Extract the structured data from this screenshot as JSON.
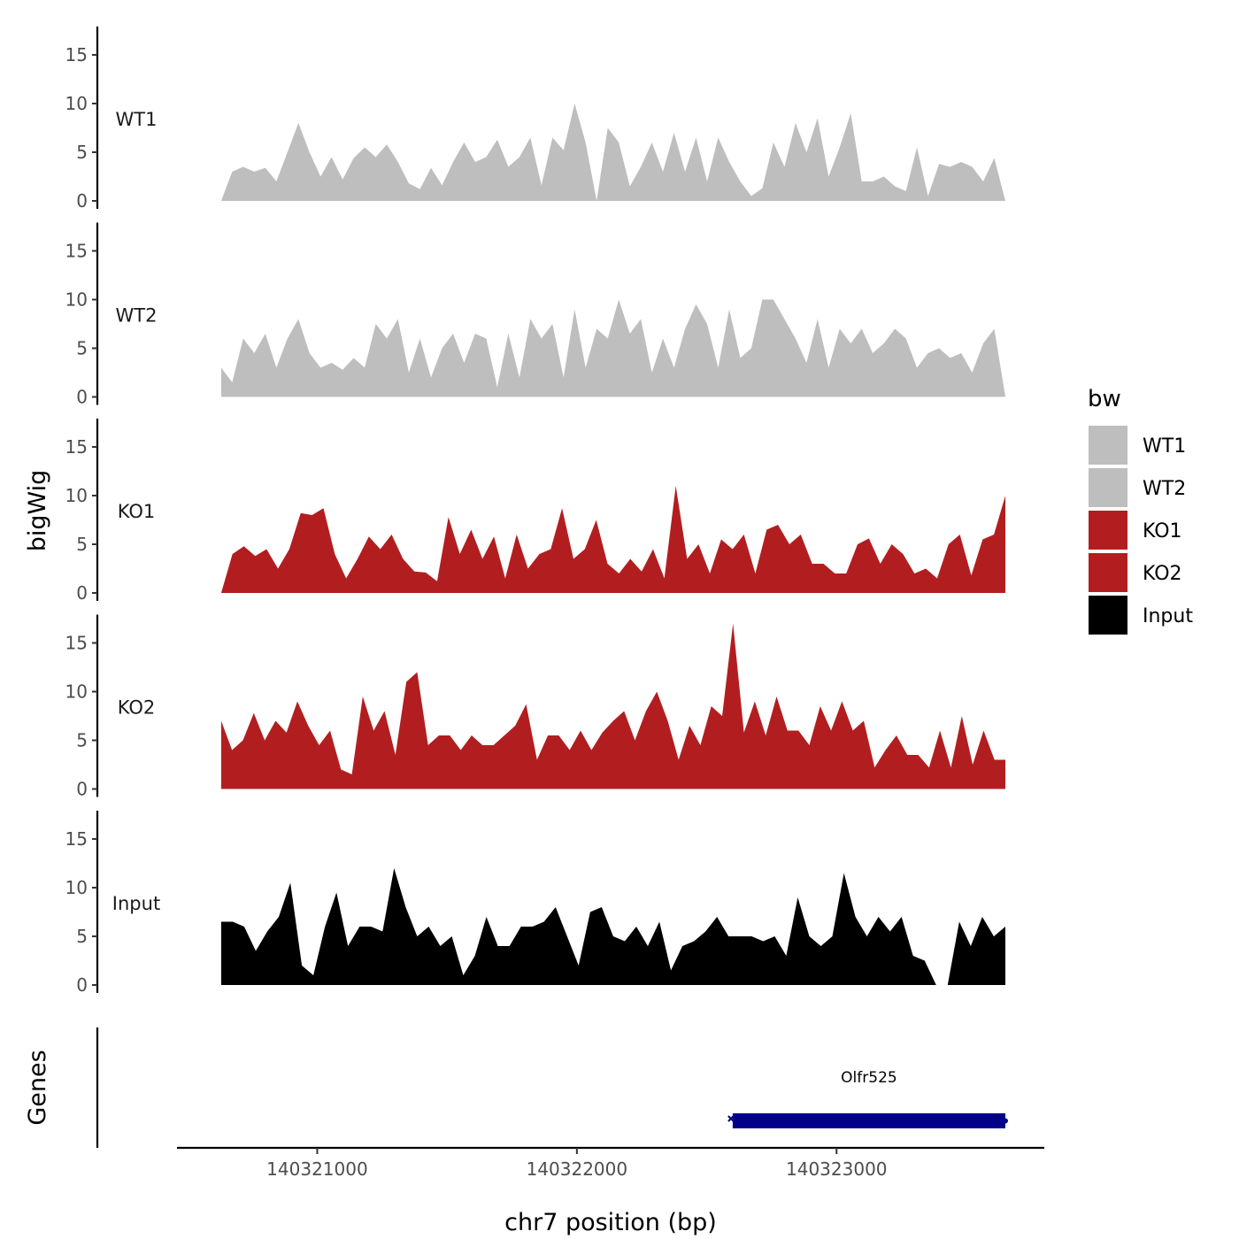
{
  "chart_data": {
    "type": "area",
    "chromosome": "chr7",
    "xlabel": "chr7 position (bp)",
    "ylabel_tracks": "bigWig",
    "ylabel_genes": "Genes",
    "xlim": [
      140320460,
      140323800
    ],
    "data_xrange": [
      140320630,
      140323650
    ],
    "ylim": [
      0,
      18
    ],
    "y_ticks": [
      0,
      5,
      10,
      15
    ],
    "x_ticks": [
      140321000,
      140322000,
      140323000
    ],
    "x_tick_labels": [
      "140321000",
      "140322000",
      "140323000"
    ],
    "legend": {
      "title": "bw",
      "position": "right",
      "entries": [
        {
          "label": "WT1",
          "color": "#bebebe"
        },
        {
          "label": "WT2",
          "color": "#bebebe"
        },
        {
          "label": "KO1",
          "color": "#b21e20"
        },
        {
          "label": "KO2",
          "color": "#b21e20"
        },
        {
          "label": "Input",
          "color": "#000000"
        }
      ]
    },
    "series": [
      {
        "name": "WT1",
        "color": "#bebebe",
        "values": [
          0,
          3,
          3.5,
          3,
          3.4,
          2,
          5,
          8,
          5,
          2.5,
          4.5,
          2.2,
          4.4,
          5.5,
          4.5,
          5.8,
          4,
          1.8,
          1.2,
          3.4,
          1.6,
          4,
          6,
          4,
          4.5,
          6.3,
          3.5,
          4.5,
          6.5,
          1.6,
          6.5,
          5.2,
          10,
          6,
          0,
          7.5,
          6,
          1.5,
          3.5,
          6,
          3,
          7,
          3,
          6.5,
          2,
          6.5,
          4,
          2,
          0.5,
          1.3,
          6,
          3.5,
          8,
          5,
          8.5,
          2.5,
          5.5,
          9,
          2,
          2,
          2.5,
          1.5,
          1,
          5.5,
          0.5,
          3.8,
          3.5,
          4,
          3.5,
          2,
          4.4,
          0
        ]
      },
      {
        "name": "WT2",
        "color": "#bebebe",
        "values": [
          3,
          1.5,
          6,
          4.5,
          6.5,
          3,
          6,
          8,
          4.5,
          3,
          3.5,
          2.8,
          4,
          3,
          7.5,
          6,
          8,
          2.5,
          6,
          2,
          5,
          6.5,
          3.5,
          6.5,
          6,
          1,
          6.5,
          2,
          8,
          6,
          7.5,
          2,
          9,
          3,
          7,
          6,
          10,
          6.5,
          8,
          2.5,
          6,
          3,
          7,
          9.5,
          7.5,
          3,
          9,
          4,
          5,
          10,
          10,
          8,
          6,
          3.5,
          8,
          3,
          7,
          5.5,
          7,
          4.5,
          5.5,
          7,
          6,
          3,
          4.5,
          5,
          4,
          4.5,
          2.5,
          5.5,
          7,
          0
        ]
      },
      {
        "name": "KO1",
        "color": "#b21e20",
        "values": [
          0,
          4,
          4.8,
          3.8,
          4.5,
          2.5,
          4.5,
          8.2,
          8,
          8.7,
          4,
          1.5,
          3.5,
          5.8,
          4.5,
          6,
          3.5,
          2.2,
          2.1,
          1.2,
          7.8,
          4,
          6.5,
          3.5,
          5.8,
          1.5,
          6,
          2.5,
          4,
          4.5,
          8.7,
          3.5,
          4.5,
          7.5,
          3,
          2,
          3.5,
          2.2,
          4.5,
          1.5,
          11,
          3.5,
          5,
          2,
          5.5,
          4.5,
          6,
          2,
          6.5,
          7,
          5,
          6,
          3,
          3,
          2,
          2,
          5,
          5.6,
          3,
          5,
          4,
          2,
          2.5,
          1.5,
          5,
          6,
          1.8,
          5.5,
          6,
          10
        ]
      },
      {
        "name": "KO2",
        "color": "#b21e20",
        "values": [
          7,
          4,
          5,
          7.8,
          5,
          7,
          5.8,
          9,
          6.5,
          4.5,
          6,
          2,
          1.5,
          9.5,
          6,
          8,
          3.5,
          11,
          12,
          4.5,
          5.5,
          5.5,
          4,
          5.5,
          4.5,
          4.5,
          5.5,
          6.5,
          8.7,
          3,
          5.5,
          5.5,
          4,
          6,
          4,
          5.8,
          7,
          8,
          5,
          8,
          10,
          7,
          3,
          6.5,
          4.5,
          8.5,
          7.5,
          17,
          5.8,
          9,
          5.5,
          9.5,
          6,
          6,
          4.5,
          8.5,
          6,
          9,
          6,
          7,
          2.2,
          4,
          5.5,
          3.5,
          3.5,
          2.2,
          6,
          2.2,
          7.5,
          2.5,
          6,
          3,
          3
        ]
      },
      {
        "name": "Input",
        "color": "#000000",
        "values": [
          6.5,
          6.5,
          6,
          3.5,
          5.5,
          7,
          10.5,
          2,
          1,
          6,
          9.5,
          4,
          6,
          6,
          5.5,
          12,
          8,
          5,
          6,
          4,
          5,
          1,
          3,
          7,
          4,
          4,
          6,
          6,
          6.5,
          8,
          5,
          2,
          7.5,
          8,
          5,
          4.5,
          6,
          4,
          6.5,
          1.5,
          4,
          4.5,
          5.5,
          7,
          5,
          5,
          5,
          4.5,
          5,
          3,
          9,
          5,
          4,
          5,
          11.5,
          7,
          5,
          7,
          5.5,
          7,
          3,
          2.5,
          0,
          0,
          6.5,
          4,
          7,
          5,
          6
        ]
      }
    ],
    "genes": [
      {
        "name": "Olfr525",
        "start": 140322600,
        "end": 140323650,
        "color": "#00008b"
      }
    ]
  }
}
